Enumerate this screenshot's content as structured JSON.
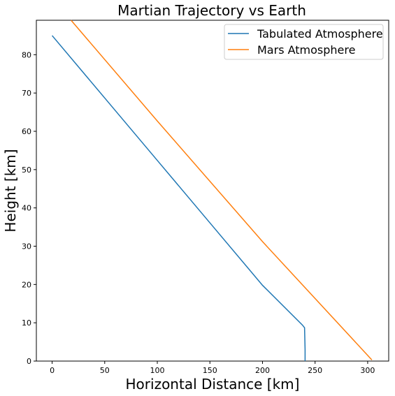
{
  "chart_data": {
    "type": "line",
    "title": "Martian Trajectory vs Earth",
    "xlabel": "Horizontal Distance [km]",
    "ylabel": "Height [km]",
    "xlim": [
      -15,
      320
    ],
    "ylim": [
      0,
      89
    ],
    "xticks": [
      0,
      50,
      100,
      150,
      200,
      250,
      300
    ],
    "yticks": [
      0,
      10,
      20,
      30,
      40,
      50,
      60,
      70,
      80
    ],
    "grid": false,
    "legend_position": "top-right",
    "series": [
      {
        "name": "Tabulated Atmosphere",
        "color": "#1f77b4",
        "x": [
          0,
          50,
          100,
          150,
          200,
          238,
          240,
          240.5,
          240.5
        ],
        "y": [
          85,
          68.7,
          52.4,
          36.1,
          19.8,
          9.4,
          8.7,
          3,
          0
        ]
      },
      {
        "name": "Mars Atmosphere",
        "color": "#ff7f0e",
        "x": [
          18,
          100,
          200,
          304
        ],
        "y": [
          89,
          62.7,
          31.2,
          0.3
        ]
      }
    ]
  }
}
